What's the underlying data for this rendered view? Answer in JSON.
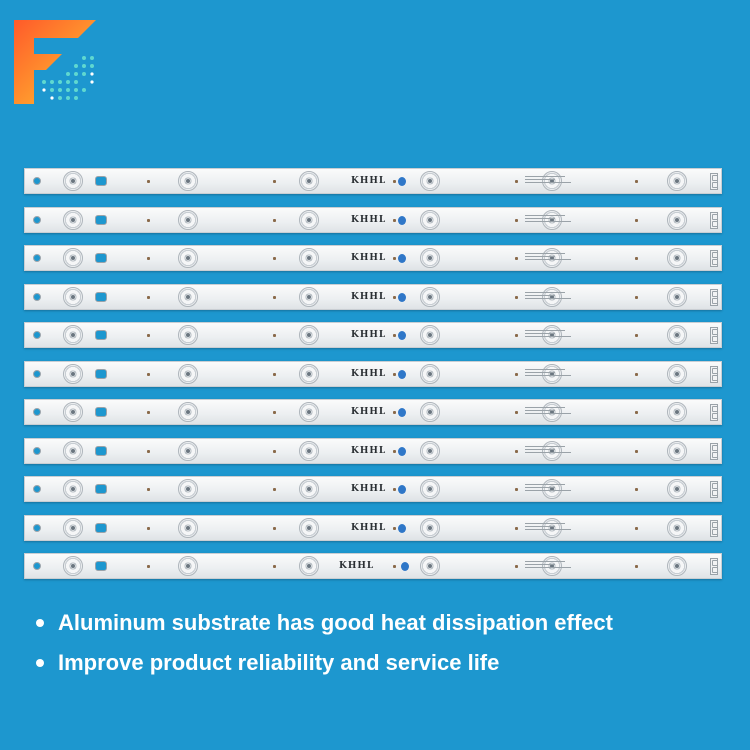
{
  "logo": {
    "icon": "f-letter-logo",
    "colors": [
      "#ff4d3a",
      "#ffb02e",
      "#4fd4c8",
      "#2a7bd8"
    ]
  },
  "strips": {
    "count": 11,
    "marking": "KHHL",
    "last_marking": "KHHL",
    "leds_per_strip": 6
  },
  "bullets": [
    "Aluminum substrate has good heat dissipation effect",
    "Improve product reliability and service life"
  ],
  "colors": {
    "background": "#1d97cf",
    "strip": "#eef0f2",
    "text": "#ffffff"
  }
}
